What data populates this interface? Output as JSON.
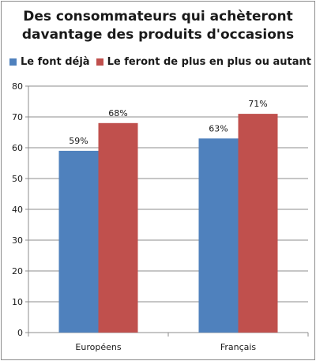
{
  "chart_data": {
    "type": "bar",
    "title_lines": [
      "Des consommateurs qui achèteront",
      "davantage des produits d'occasions"
    ],
    "categories": [
      "Européens",
      "Français"
    ],
    "series": [
      {
        "name": "Le font déjà",
        "values": [
          59,
          63
        ],
        "labels": [
          "59%",
          "63%"
        ],
        "color": "#4f81bd"
      },
      {
        "name": "Le feront de plus en plus ou autant",
        "values": [
          68,
          71
        ],
        "labels": [
          "68%",
          "71%"
        ],
        "color": "#c0504d"
      }
    ],
    "ylim": [
      0,
      80
    ],
    "yticks": [
      "0",
      "10",
      "20",
      "30",
      "40",
      "50",
      "60",
      "70",
      "80"
    ],
    "grid": true,
    "legend_position": "top-left"
  }
}
